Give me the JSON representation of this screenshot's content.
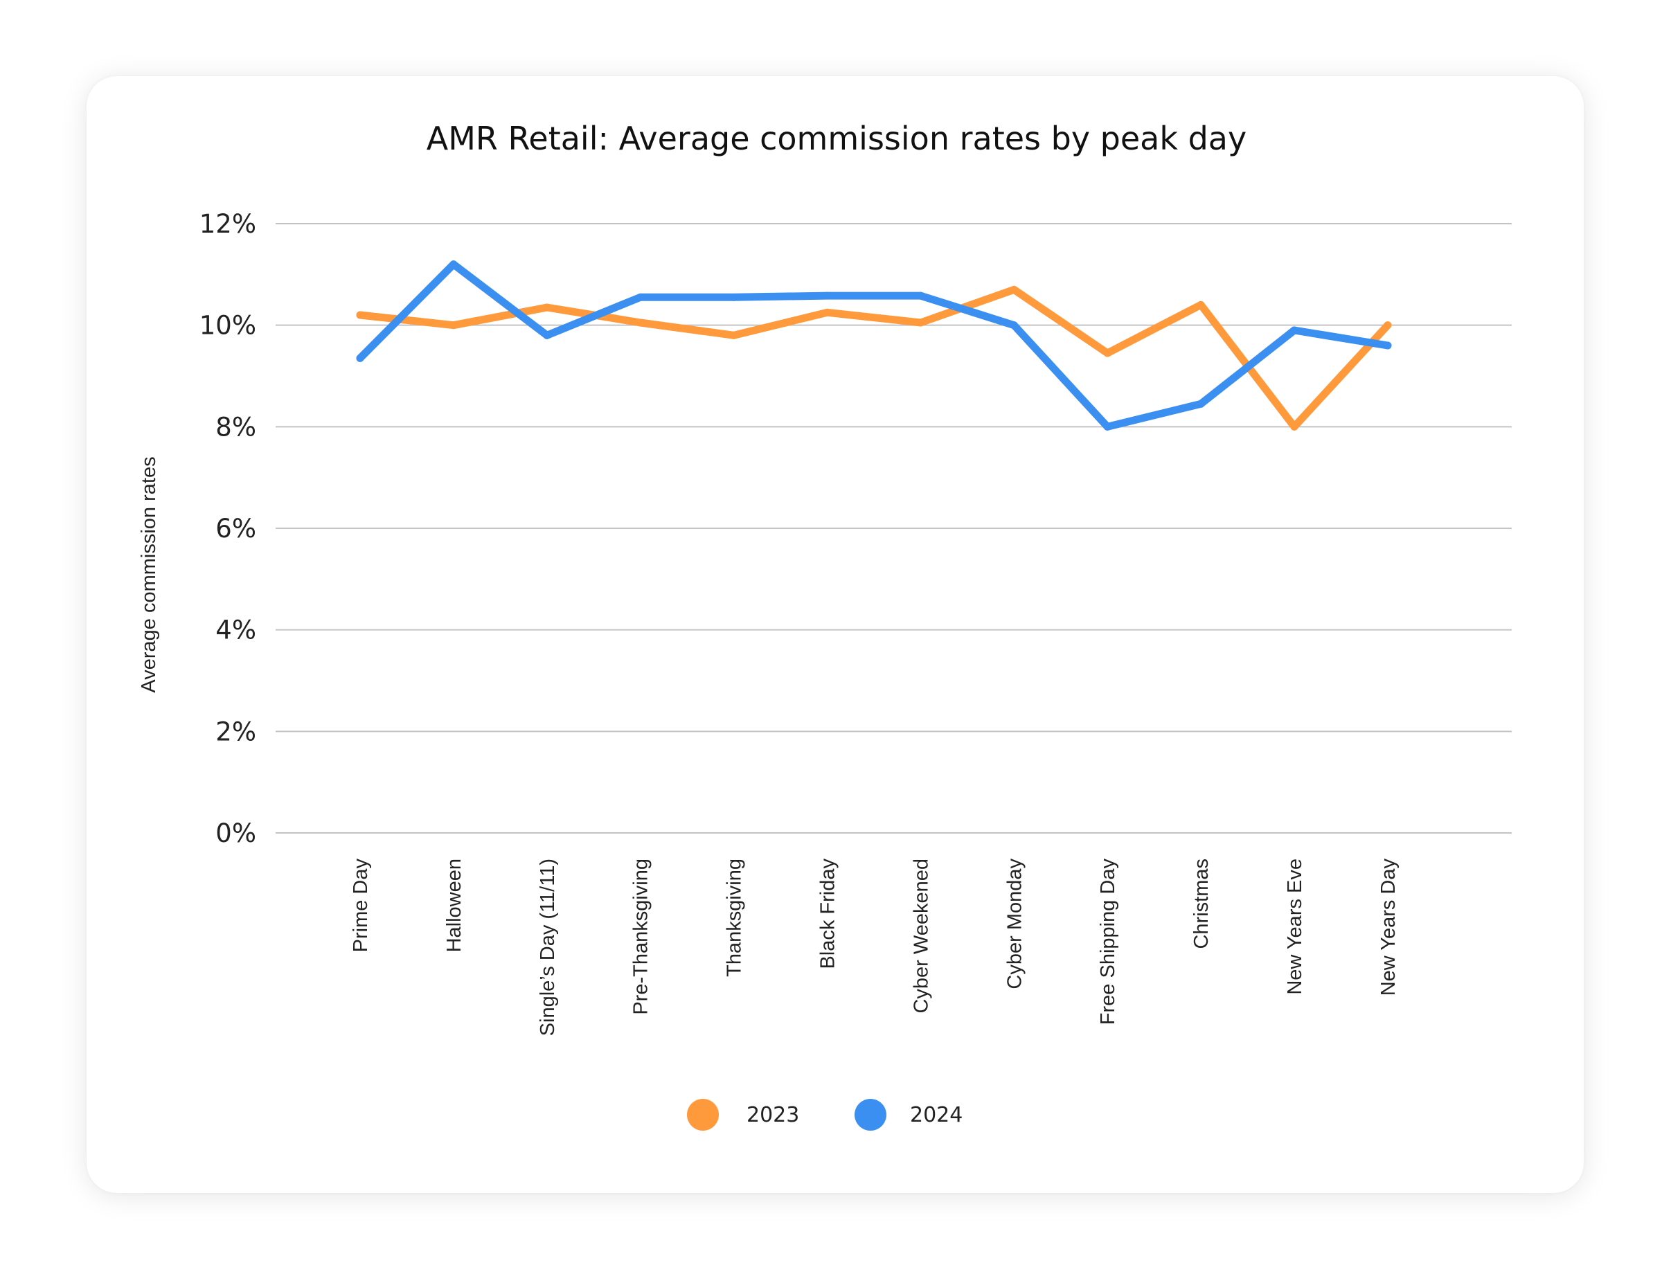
{
  "chart_data": {
    "type": "line",
    "title": "AMR Retail: Average commission rates by peak day",
    "xlabel": "",
    "ylabel": "Average commission rates",
    "ylim": [
      0,
      12
    ],
    "yticks": [
      "0%",
      "2%",
      "4%",
      "6%",
      "8%",
      "10%",
      "12%"
    ],
    "ytick_values": [
      0,
      2,
      4,
      6,
      8,
      10,
      12
    ],
    "grid": true,
    "legend_position": "bottom",
    "categories": [
      "Prime Day",
      "Halloween",
      "Single’s Day (11/11)",
      "Pre-Thanksgiving",
      "Thanksgiving",
      "Black Friday",
      "Cyber Weekened",
      "Cyber Monday",
      "Free Shipping Day",
      "Christmas",
      "New Years Eve",
      "New Years Day"
    ],
    "series": [
      {
        "name": "2023",
        "color": "#ff9a3c",
        "values": [
          10.2,
          10.0,
          10.35,
          10.05,
          9.8,
          10.25,
          10.05,
          10.7,
          9.45,
          10.4,
          8.0,
          10.0
        ]
      },
      {
        "name": "2024",
        "color": "#3b8ff0",
        "values": [
          9.35,
          11.2,
          9.8,
          10.55,
          10.55,
          10.58,
          10.58,
          10.0,
          8.0,
          8.45,
          9.9,
          9.6
        ]
      }
    ]
  }
}
